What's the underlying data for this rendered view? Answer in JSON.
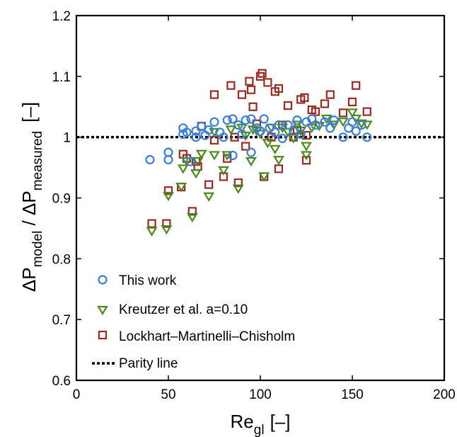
{
  "chart_data": {
    "type": "scatter",
    "xlim": [
      0,
      200
    ],
    "ylim": [
      0.6,
      1.2
    ],
    "xticks": [
      "0",
      "50",
      "100",
      "150",
      "200"
    ],
    "yticks": [
      "0.6",
      "0.7",
      "0.8",
      "0.9",
      "1",
      "1.1",
      "1.2"
    ],
    "xlabel": {
      "main": "Re",
      "sub": "gl",
      "unit": "[–]"
    },
    "ylabel": {
      "part1": "ΔP",
      "sub1": "model",
      "part2": " / ΔP",
      "sub2": "measured",
      "unit": "[–]"
    },
    "grid": false,
    "legend_position": "bottom-left",
    "series": [
      {
        "name": "This work",
        "marker": "circle",
        "color": "#3a7fd5",
        "points": [
          [
            40,
            0.963
          ],
          [
            50,
            0.963
          ],
          [
            50,
            0.975
          ],
          [
            58,
            1.005
          ],
          [
            58,
            1.015
          ],
          [
            60,
            1.008
          ],
          [
            62,
            0.96
          ],
          [
            65,
            1.0
          ],
          [
            65,
            1.01
          ],
          [
            68,
            1.018
          ],
          [
            70,
            1.003
          ],
          [
            72,
            1.012
          ],
          [
            75,
            1.025
          ],
          [
            78,
            1.008
          ],
          [
            80,
            1.0
          ],
          [
            82,
            1.028
          ],
          [
            85,
            1.03
          ],
          [
            88,
            1.02
          ],
          [
            90,
            1.005
          ],
          [
            92,
            1.028
          ],
          [
            95,
            1.03
          ],
          [
            98,
            1.015
          ],
          [
            100,
            1.01
          ],
          [
            102,
            1.03
          ],
          [
            105,
            1.015
          ],
          [
            108,
            1.008
          ],
          [
            110,
            1.02
          ],
          [
            112,
            0.998
          ],
          [
            115,
            1.02
          ],
          [
            118,
            1.01
          ],
          [
            120,
            1.028
          ],
          [
            122,
            1.005
          ],
          [
            125,
            1.025
          ],
          [
            128,
            1.03
          ],
          [
            130,
            1.02
          ],
          [
            135,
            1.025
          ],
          [
            138,
            1.015
          ],
          [
            140,
            1.028
          ],
          [
            145,
            1.0
          ],
          [
            148,
            1.015
          ],
          [
            150,
            1.025
          ],
          [
            152,
            1.01
          ],
          [
            155,
            1.02
          ],
          [
            158,
            1.0
          ],
          [
            95,
            0.975
          ],
          [
            85,
            0.97
          ]
        ]
      },
      {
        "name": "Kreutzer et al. a=0.10",
        "marker": "triangle-down",
        "color": "#4a8a1a",
        "points": [
          [
            41,
            0.845
          ],
          [
            49,
            0.848
          ],
          [
            50,
            0.903
          ],
          [
            57,
            0.918
          ],
          [
            58,
            0.948
          ],
          [
            60,
            0.96
          ],
          [
            63,
            0.868
          ],
          [
            65,
            0.94
          ],
          [
            66,
            0.96
          ],
          [
            68,
            0.972
          ],
          [
            72,
            0.902
          ],
          [
            75,
            0.97
          ],
          [
            75,
            1.008
          ],
          [
            80,
            0.945
          ],
          [
            82,
            0.97
          ],
          [
            84,
            1.012
          ],
          [
            88,
            0.915
          ],
          [
            90,
            1.015
          ],
          [
            92,
            1.002
          ],
          [
            95,
            0.96
          ],
          [
            96,
            1.012
          ],
          [
            98,
            1.01
          ],
          [
            100,
            1.005
          ],
          [
            102,
            0.935
          ],
          [
            104,
            0.99
          ],
          [
            106,
            1.015
          ],
          [
            108,
            0.98
          ],
          [
            110,
            0.962
          ],
          [
            112,
            1.015
          ],
          [
            115,
            1.008
          ],
          [
            118,
            0.998
          ],
          [
            120,
            1.02
          ],
          [
            122,
            1.01
          ],
          [
            125,
            0.985
          ],
          [
            125,
            0.97
          ],
          [
            128,
            1.015
          ],
          [
            132,
            1.018
          ],
          [
            136,
            1.03
          ],
          [
            140,
            1.02
          ],
          [
            145,
            1.025
          ],
          [
            150,
            1.04
          ],
          [
            152,
            1.03
          ],
          [
            155,
            1.022
          ],
          [
            158,
            1.02
          ]
        ]
      },
      {
        "name": "Lockhart–Martinelli–Chisholm",
        "marker": "square",
        "color": "#9a2a22",
        "points": [
          [
            41,
            0.858
          ],
          [
            49,
            0.858
          ],
          [
            50,
            0.912
          ],
          [
            57,
            0.918
          ],
          [
            58,
            0.972
          ],
          [
            60,
            0.965
          ],
          [
            63,
            0.878
          ],
          [
            65,
            0.96
          ],
          [
            66,
            0.952
          ],
          [
            68,
            1.018
          ],
          [
            72,
            0.922
          ],
          [
            75,
            1.07
          ],
          [
            75,
            0.995
          ],
          [
            80,
            0.935
          ],
          [
            82,
            0.965
          ],
          [
            84,
            1.085
          ],
          [
            86,
            1.0
          ],
          [
            88,
            0.925
          ],
          [
            90,
            1.07
          ],
          [
            92,
            0.985
          ],
          [
            94,
            1.092
          ],
          [
            95,
            1.078
          ],
          [
            96,
            1.05
          ],
          [
            98,
            1.022
          ],
          [
            100,
            1.1
          ],
          [
            101,
            1.105
          ],
          [
            102,
            0.935
          ],
          [
            104,
            1.09
          ],
          [
            106,
            1.0
          ],
          [
            108,
            1.075
          ],
          [
            110,
            1.08
          ],
          [
            110,
            0.948
          ],
          [
            112,
            1.02
          ],
          [
            115,
            1.052
          ],
          [
            118,
            1.0
          ],
          [
            120,
            1.012
          ],
          [
            122,
            1.062
          ],
          [
            124,
            1.065
          ],
          [
            125,
            0.962
          ],
          [
            125,
            1.003
          ],
          [
            128,
            1.045
          ],
          [
            130,
            1.042
          ],
          [
            135,
            1.055
          ],
          [
            138,
            1.07
          ],
          [
            145,
            1.04
          ],
          [
            150,
            1.058
          ],
          [
            152,
            1.085
          ],
          [
            158,
            1.042
          ]
        ]
      },
      {
        "name": "Parity line",
        "line": "dotted",
        "color": "#000000",
        "points": [
          [
            0,
            1.0
          ],
          [
            200,
            1.0
          ]
        ]
      }
    ]
  }
}
